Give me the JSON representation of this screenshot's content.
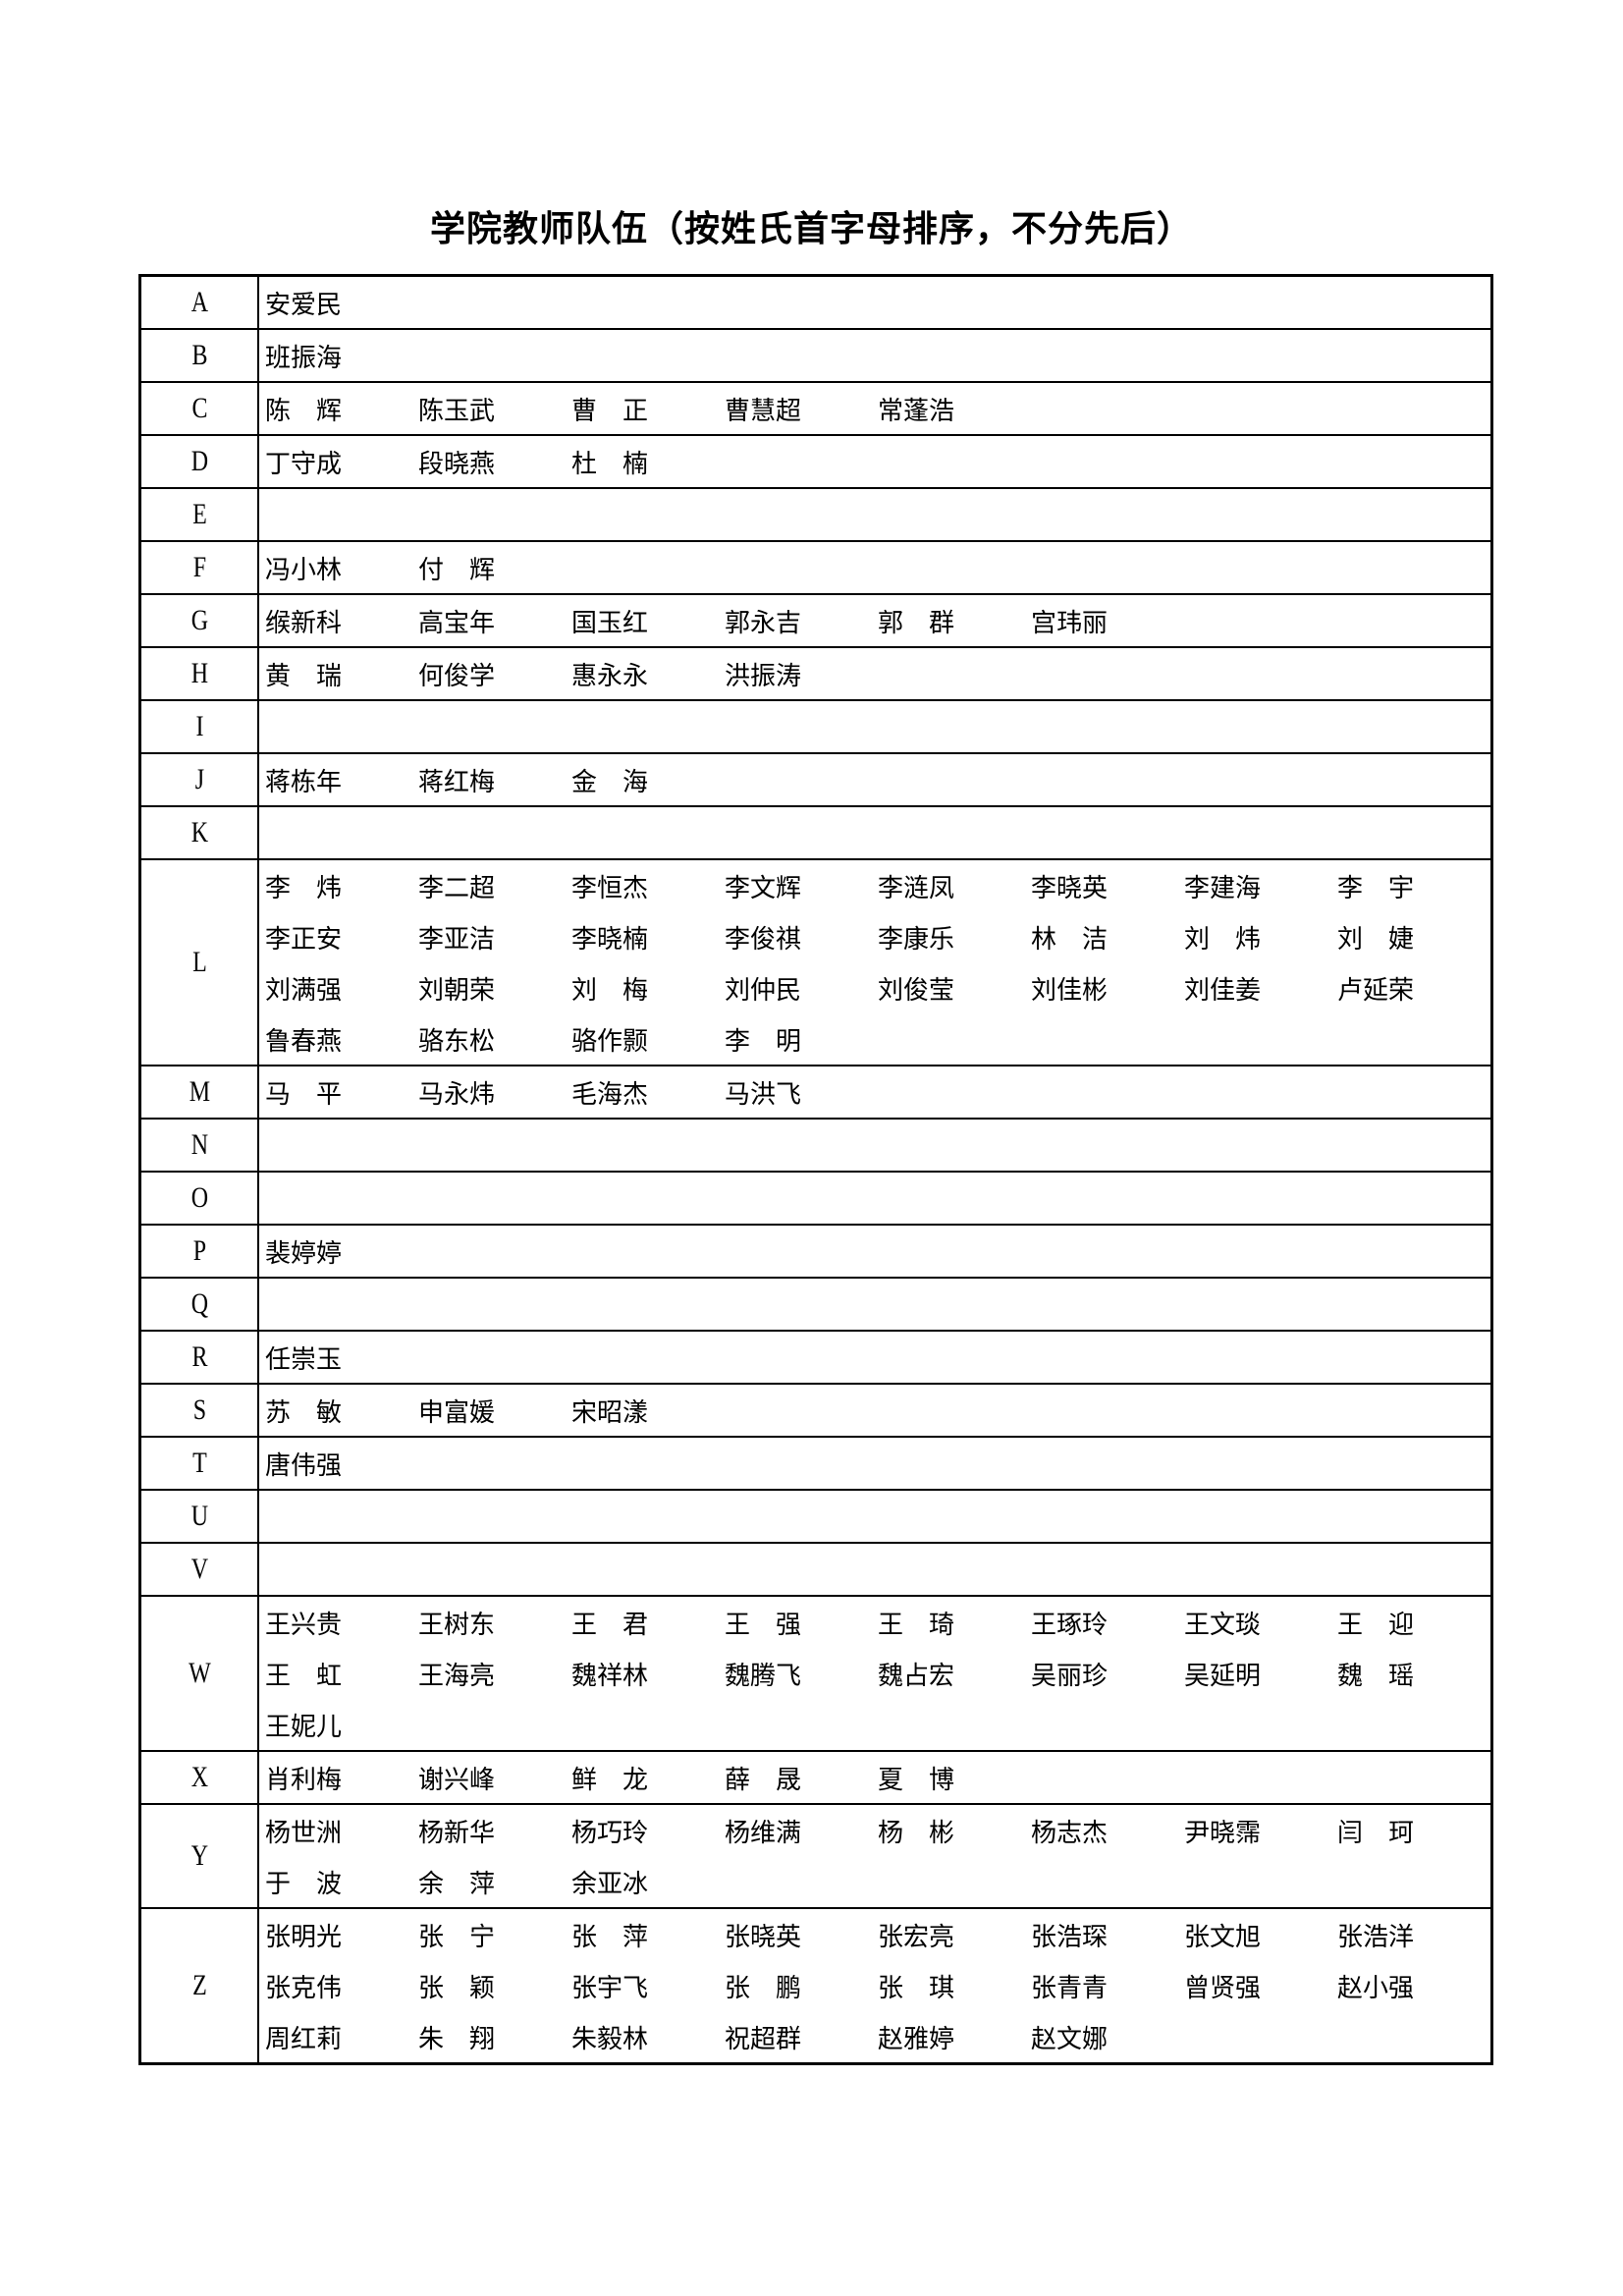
{
  "title": "学院教师队伍（按姓氏首字母排序，不分先后）",
  "groups": [
    {
      "letter": "A",
      "names": [
        "安爱民"
      ]
    },
    {
      "letter": "B",
      "names": [
        "班振海"
      ]
    },
    {
      "letter": "C",
      "names": [
        "陈　辉",
        "陈玉武",
        "曹　正",
        "曹慧超",
        "常蓬浩"
      ]
    },
    {
      "letter": "D",
      "names": [
        "丁守成",
        "段晓燕",
        "杜　楠"
      ]
    },
    {
      "letter": "E",
      "names": []
    },
    {
      "letter": "F",
      "names": [
        "冯小林",
        "付　辉"
      ]
    },
    {
      "letter": "G",
      "names": [
        "缑新科",
        "高宝年",
        "国玉红",
        "郭永吉",
        "郭　群",
        "宫玮丽"
      ]
    },
    {
      "letter": "H",
      "names": [
        "黄　瑞",
        "何俊学",
        "惠永永",
        "洪振涛"
      ]
    },
    {
      "letter": "I",
      "names": []
    },
    {
      "letter": "J",
      "names": [
        "蒋栋年",
        "蒋红梅",
        "金　海"
      ]
    },
    {
      "letter": "K",
      "names": []
    },
    {
      "letter": "L",
      "names": [
        "李　炜",
        "李二超",
        "李恒杰",
        "李文辉",
        "李涟凤",
        "李晓英",
        "李建海",
        "李　宇",
        "李正安",
        "李亚洁",
        "李晓楠",
        "李俊祺",
        "李康乐",
        "林　洁",
        "刘　炜",
        "刘　婕",
        "刘满强",
        "刘朝荣",
        "刘　梅",
        "刘仲民",
        "刘俊莹",
        "刘佳彬",
        "刘佳姜",
        "卢延荣",
        "鲁春燕",
        "骆东松",
        "骆作颢",
        "李　明"
      ]
    },
    {
      "letter": "M",
      "names": [
        "马　平",
        "马永炜",
        "毛海杰",
        "马洪飞"
      ]
    },
    {
      "letter": "N",
      "names": []
    },
    {
      "letter": "O",
      "names": []
    },
    {
      "letter": "P",
      "names": [
        "裴婷婷"
      ]
    },
    {
      "letter": "Q",
      "names": []
    },
    {
      "letter": "R",
      "names": [
        "任崇玉"
      ]
    },
    {
      "letter": "S",
      "names": [
        "苏　敏",
        "申富媛",
        "宋昭漾"
      ]
    },
    {
      "letter": "T",
      "names": [
        "唐伟强"
      ]
    },
    {
      "letter": "U",
      "names": []
    },
    {
      "letter": "V",
      "names": []
    },
    {
      "letter": "W",
      "names": [
        "王兴贵",
        "王树东",
        "王　君",
        "王　强",
        "王　琦",
        "王琢玲",
        "王文琰",
        "王　迎",
        "王　虹",
        "王海亮",
        "魏祥林",
        "魏腾飞",
        "魏占宏",
        "吴丽珍",
        "吴延明",
        "魏　瑶",
        "王妮儿"
      ]
    },
    {
      "letter": "X",
      "names": [
        "肖利梅",
        "谢兴峰",
        "鲜　龙",
        "薛　晟",
        "夏　博"
      ]
    },
    {
      "letter": "Y",
      "names": [
        "杨世洲",
        "杨新华",
        "杨巧玲",
        "杨维满",
        "杨　彬",
        "杨志杰",
        "尹晓霈",
        "闫　珂",
        "于　波",
        "余　萍",
        "余亚冰"
      ]
    },
    {
      "letter": "Z",
      "names": [
        "张明光",
        "张　宁",
        "张　萍",
        "张晓英",
        "张宏亮",
        "张浩琛",
        "张文旭",
        "张浩洋",
        "张克伟",
        "张　颖",
        "张宇飞",
        "张　鹏",
        "张　琪",
        "张青青",
        "曾贤强",
        "赵小强",
        "周红莉",
        "朱　翔",
        "朱毅林",
        "祝超群",
        "赵雅婷",
        "赵文娜"
      ]
    }
  ]
}
